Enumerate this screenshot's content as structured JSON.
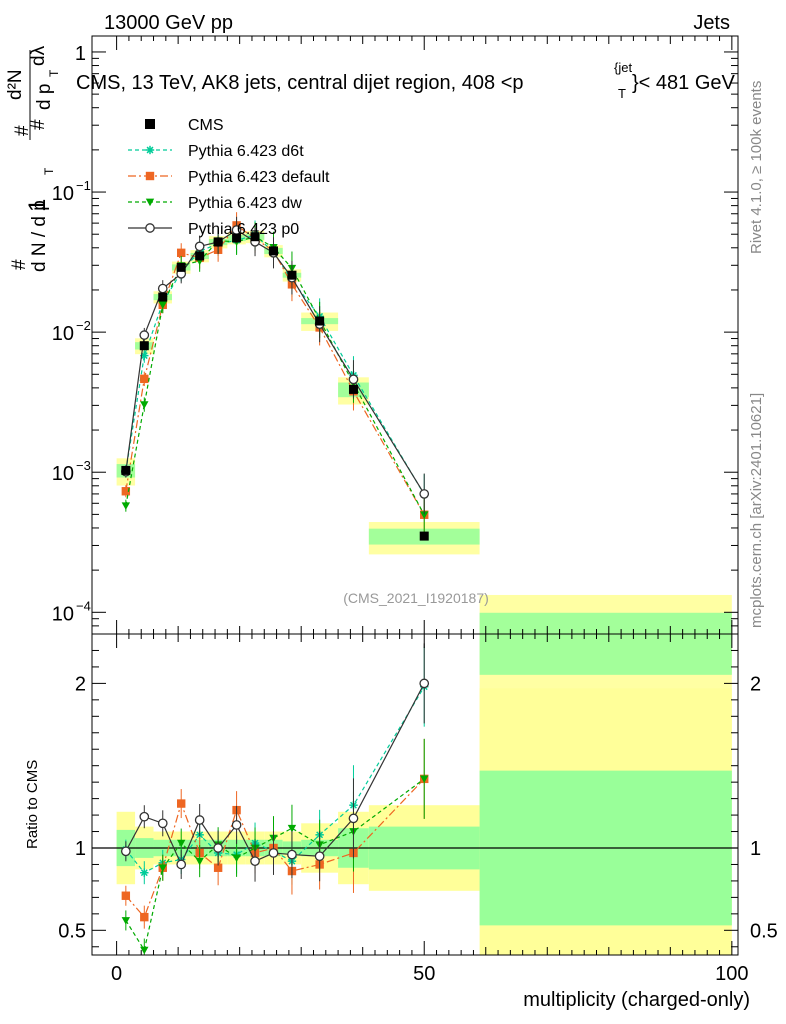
{
  "header": {
    "energy_label": "13000 GeV pp",
    "category_label": "Jets"
  },
  "side": {
    "rivet_label": "Rivet 4.1.0, ≥ 100k events",
    "mcplots_label": "mcplots.cern.ch [arXiv:2401.10621]"
  },
  "chart_data": {
    "type": "line",
    "title": "CMS, 13 TeV, AK8 jets, central dijet region, 408 <p",
    "title_sup": "{jet",
    "title_sub": "T",
    "title_tail": "}< 481 GeV",
    "watermark": "(CMS_2021_I1920187)",
    "xlabel": "multiplicity (charged-only)",
    "ylabel_upper": {
      "one": "1",
      "num_hash": "#",
      "num": "d²N",
      "den_hash": "#",
      "den_pre": "d p",
      "den_sub": "T",
      "den_post": "dλ",
      "lead_hash": "#",
      "left": "d N / d p",
      "left_sub": "T"
    },
    "ylabel_ratio": "Ratio to CMS",
    "xlim": [
      -4,
      101
    ],
    "ylim_upper": [
      7e-05,
      1.3
    ],
    "ylim_ratio": [
      0.35,
      2.3
    ],
    "x_ticks": [
      {
        "value": 0,
        "label": "0"
      },
      {
        "value": 50,
        "label": "50"
      },
      {
        "value": 100,
        "label": "100"
      }
    ],
    "y_ticks_upper": [
      {
        "value": 1,
        "base": "1",
        "exp": ""
      },
      {
        "value": 0.1,
        "base": "10",
        "exp": "−1"
      },
      {
        "value": 0.01,
        "base": "10",
        "exp": "−2"
      },
      {
        "value": 0.001,
        "base": "10",
        "exp": "−3"
      },
      {
        "value": 0.0001,
        "base": "10",
        "exp": "−4"
      }
    ],
    "y_ticks_ratio": [
      {
        "value": 2,
        "label": "2"
      },
      {
        "value": 1,
        "label": "1"
      },
      {
        "value": 0.5,
        "label": "0.5"
      }
    ],
    "data_bins": [
      {
        "lo": 0,
        "hi": 3,
        "y": 0.00103,
        "band_in": 0.11,
        "band_out": 0.22
      },
      {
        "lo": 3,
        "hi": 6,
        "y": 0.008,
        "band_in": 0.06,
        "band_out": 0.13
      },
      {
        "lo": 6,
        "hi": 9,
        "y": 0.0178,
        "band_in": 0.05,
        "band_out": 0.1
      },
      {
        "lo": 9,
        "hi": 12,
        "y": 0.029,
        "band_in": 0.05,
        "band_out": 0.1
      },
      {
        "lo": 12,
        "hi": 15,
        "y": 0.035,
        "band_in": 0.05,
        "band_out": 0.1
      },
      {
        "lo": 15,
        "hi": 18,
        "y": 0.044,
        "band_in": 0.05,
        "band_out": 0.1
      },
      {
        "lo": 18,
        "hi": 21,
        "y": 0.047,
        "band_in": 0.05,
        "band_out": 0.1
      },
      {
        "lo": 21,
        "hi": 24,
        "y": 0.048,
        "band_in": 0.05,
        "band_out": 0.1
      },
      {
        "lo": 24,
        "hi": 27,
        "y": 0.038,
        "band_in": 0.05,
        "band_out": 0.1
      },
      {
        "lo": 27,
        "hi": 30,
        "y": 0.0255,
        "band_in": 0.04,
        "band_out": 0.1
      },
      {
        "lo": 30,
        "hi": 36,
        "y": 0.012,
        "band_in": 0.05,
        "band_out": 0.15
      },
      {
        "lo": 36,
        "hi": 41,
        "y": 0.0039,
        "band_in": 0.12,
        "band_out": 0.22
      },
      {
        "lo": 41,
        "hi": 59,
        "y": 0.00035,
        "band_in": 0.13,
        "band_out": 0.26
      },
      {
        "lo": 59,
        "hi": 100,
        "y": 6.75e-05,
        "band_in": 0.47,
        "band_out": 0.97
      }
    ],
    "series": [
      {
        "name": "Pythia 6.423 d6t",
        "color": "#00cc99",
        "marker": "star",
        "dash": "4,3",
        "x": [
          1.5,
          4.5,
          7.5,
          10.5,
          13.5,
          16.5,
          19.5,
          22.5,
          25.5,
          28.5,
          33,
          38.5,
          50
        ],
        "ratio": [
          0.99,
          0.85,
          0.91,
          0.93,
          1.08,
          0.97,
          0.96,
          1.03,
          0.98,
          0.92,
          1.08,
          1.26,
          1.98
        ]
      },
      {
        "name": "Pythia 6.423 default",
        "color": "#ee6622",
        "marker": "square",
        "dash": "8,3,2,3",
        "x": [
          1.5,
          4.5,
          7.5,
          10.5,
          13.5,
          16.5,
          19.5,
          22.5,
          25.5,
          28.5,
          33,
          38.5,
          50
        ],
        "ratio": [
          0.71,
          0.58,
          0.88,
          1.27,
          0.97,
          0.88,
          1.23,
          0.97,
          1.0,
          0.86,
          0.9,
          0.97,
          1.42
        ]
      },
      {
        "name": "Pythia 6.423 dw",
        "color": "#00aa00",
        "marker": "triangle",
        "dash": "4,3",
        "x": [
          1.5,
          4.5,
          7.5,
          10.5,
          13.5,
          16.5,
          19.5,
          22.5,
          25.5,
          28.5,
          33,
          38.5,
          50
        ],
        "ratio": [
          0.56,
          0.38,
          0.88,
          1.03,
          0.92,
          1.02,
          0.94,
          1.0,
          1.06,
          1.12,
          1.02,
          1.1,
          1.42
        ]
      },
      {
        "name": "Pythia 6.423 p0",
        "color": "#333333",
        "marker": "circle",
        "dash": "",
        "x": [
          1.5,
          4.5,
          7.5,
          10.5,
          13.5,
          16.5,
          19.5,
          22.5,
          25.5,
          28.5,
          33,
          38.5,
          50
        ],
        "ratio": [
          0.98,
          1.19,
          1.15,
          0.9,
          1.17,
          1.0,
          1.14,
          0.92,
          0.97,
          0.96,
          0.95,
          1.18,
          2.0
        ]
      }
    ],
    "legend": [
      {
        "label": "CMS",
        "marker": "square",
        "color": "#000000"
      },
      {
        "label": "Pythia 6.423 d6t",
        "marker": "star",
        "color": "#00cc99"
      },
      {
        "label": "Pythia 6.423 default",
        "marker": "square",
        "color": "#ee6622"
      },
      {
        "label": "Pythia 6.423 dw",
        "marker": "triangle",
        "color": "#00aa00"
      },
      {
        "label": "Pythia 6.423 p0",
        "marker": "circle",
        "color": "#333333"
      }
    ],
    "band_colors": {
      "inner": "#99ff99",
      "outer": "#ffff99"
    }
  }
}
